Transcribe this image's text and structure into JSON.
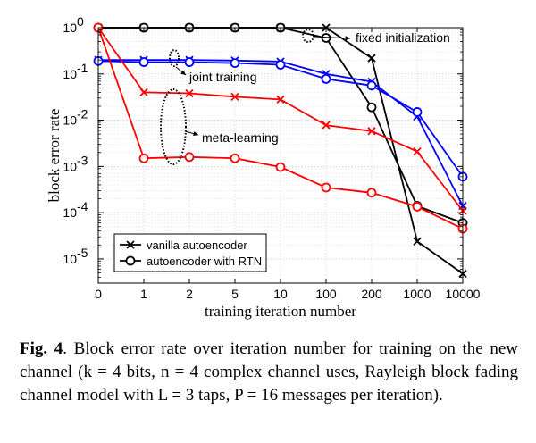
{
  "chart_data": {
    "type": "line",
    "xlabel": "training iteration number",
    "ylabel": "block error rate",
    "categories": [
      "0",
      "1",
      "2",
      "5",
      "10",
      "100",
      "200",
      "1000",
      "10000"
    ],
    "y_scale": "log",
    "ylim": [
      3e-06,
      1
    ],
    "y_ticks": [
      {
        "mant": "10",
        "exp": "0"
      },
      {
        "mant": "10",
        "exp": "-1"
      },
      {
        "mant": "10",
        "exp": "-2"
      },
      {
        "mant": "10",
        "exp": "-3"
      },
      {
        "mant": "10",
        "exp": "-4"
      },
      {
        "mant": "10",
        "exp": "-5"
      }
    ],
    "grid": true,
    "legend_position": "bottom-left",
    "legend": [
      {
        "label": "vanilla autoencoder",
        "marker": "x"
      },
      {
        "label": "autoencoder with RTN",
        "marker": "o"
      }
    ],
    "series": [
      {
        "group": "fixed initialization",
        "marker": "x",
        "color": "#000000",
        "values": [
          1,
          1,
          1,
          1,
          1,
          1,
          0.22,
          2.4e-05,
          4.8e-06
        ]
      },
      {
        "group": "fixed initialization",
        "marker": "o",
        "color": "#000000",
        "values": [
          1,
          1,
          1,
          1,
          1,
          0.6,
          0.019,
          0.00014,
          6e-05
        ]
      },
      {
        "group": "joint training",
        "marker": "x",
        "color": "#0000ff",
        "values": [
          0.2,
          0.2,
          0.2,
          0.195,
          0.185,
          0.1,
          0.068,
          0.012,
          0.00014
        ]
      },
      {
        "group": "joint training",
        "marker": "o",
        "color": "#0000ff",
        "values": [
          0.19,
          0.18,
          0.18,
          0.172,
          0.158,
          0.078,
          0.056,
          0.015,
          0.0006
        ]
      },
      {
        "group": "meta-learning",
        "marker": "x",
        "color": "#ff0000",
        "values": [
          1,
          0.04,
          0.038,
          0.032,
          0.028,
          0.0078,
          0.0058,
          0.0021,
          0.00011
        ]
      },
      {
        "group": "meta-learning",
        "marker": "o",
        "color": "#ff0000",
        "values": [
          1,
          0.0015,
          0.0016,
          0.0015,
          0.00097,
          0.00035,
          0.00027,
          0.000135,
          4.5e-05
        ]
      }
    ],
    "annotations": [
      {
        "text": "fixed initialization"
      },
      {
        "text": "joint training"
      },
      {
        "text": "meta-learning"
      }
    ]
  },
  "caption": {
    "lead": "Fig. 4",
    "text": ". Block error rate over iteration number for training on the new channel (k = 4 bits, n = 4 complex channel uses, Rayleigh block fading channel model with L = 3 taps, P = 16 messages per iteration)."
  }
}
